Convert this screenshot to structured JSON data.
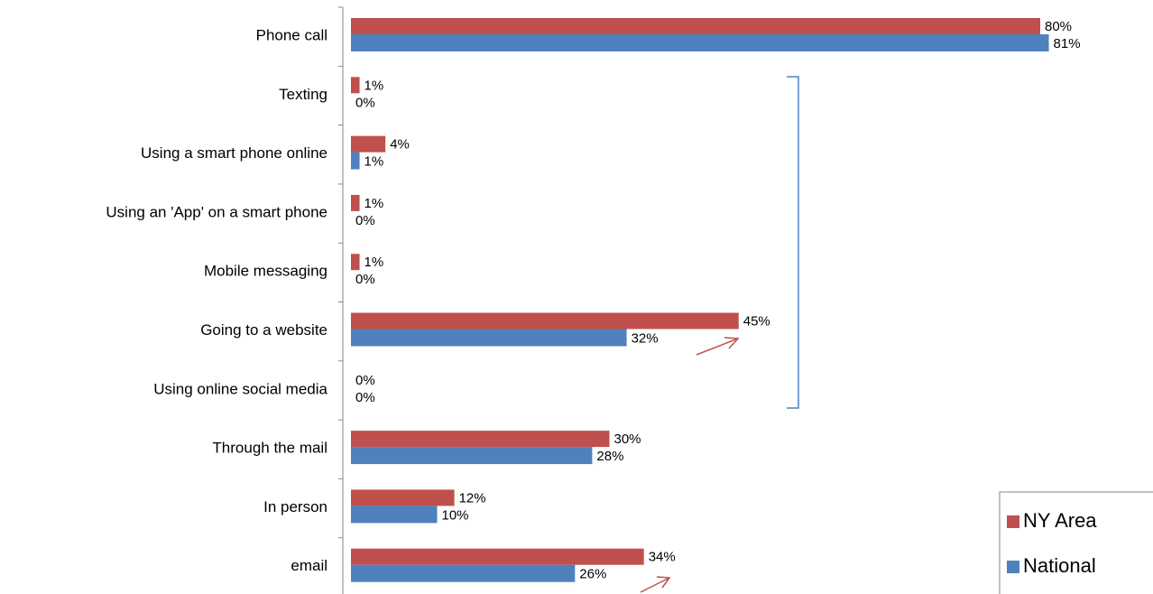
{
  "chart_data": {
    "type": "bar",
    "orientation": "horizontal",
    "categories": [
      "Phone call",
      "Texting",
      "Using a smart phone online",
      "Using an 'App' on a smart phone",
      "Mobile messaging",
      "Going to a website",
      "Using online social media",
      "Through the mail",
      "In person",
      "email"
    ],
    "series": [
      {
        "name": "NY Area",
        "color": "#c0504d",
        "values": [
          80,
          1,
          4,
          1,
          1,
          45,
          0,
          30,
          12,
          34
        ],
        "value_labels": [
          "80%",
          "1%",
          "4%",
          "1%",
          "1%",
          "45%",
          "0%",
          "30%",
          "12%",
          "34%"
        ]
      },
      {
        "name": "National",
        "color": "#4f81bd",
        "values": [
          81,
          0,
          1,
          0,
          0,
          32,
          0,
          28,
          10,
          26
        ],
        "value_labels": [
          "81%",
          "0%",
          "1%",
          "0%",
          "0%",
          "32%",
          "0%",
          "28%",
          "10%",
          "26%"
        ]
      }
    ],
    "legend": "bottom-right"
  }
}
